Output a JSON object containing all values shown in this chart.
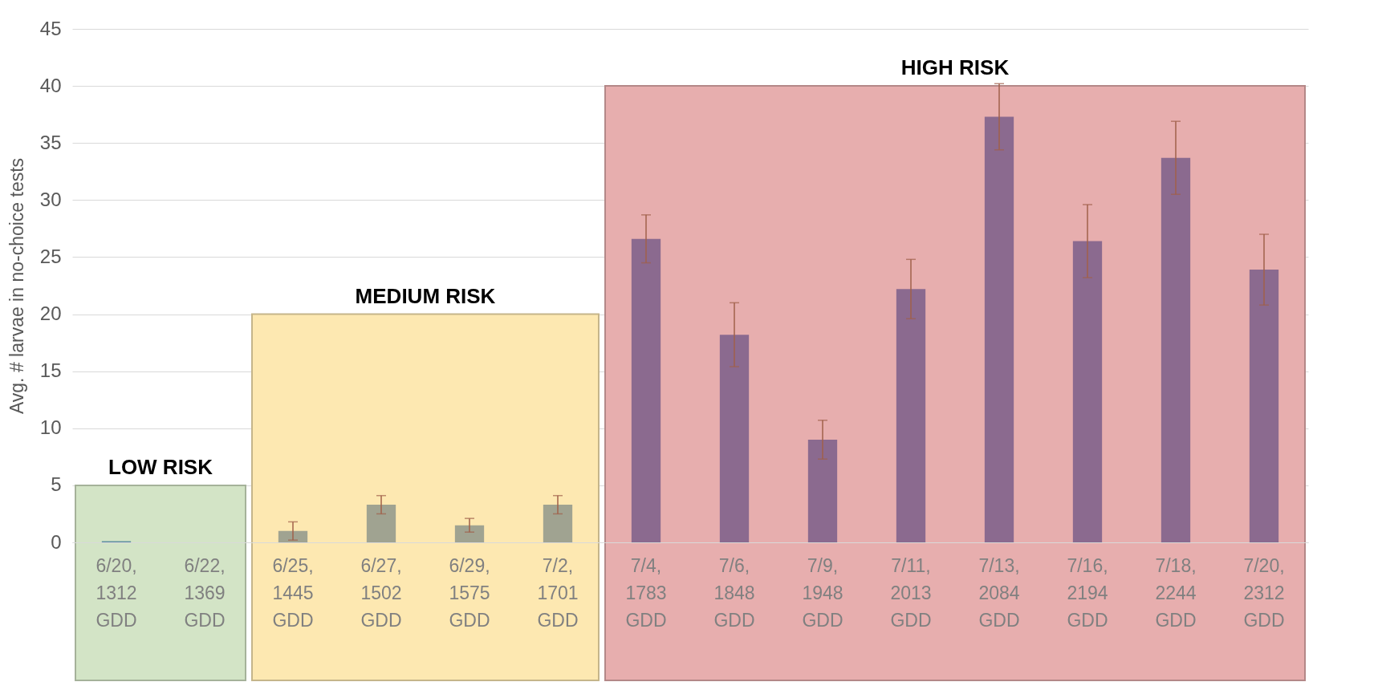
{
  "chart_data": {
    "type": "bar",
    "ylabel": "Avg. # larvae in no-choice tests",
    "categories": [
      "6/20, 1312 GDD",
      "6/22, 1369 GDD",
      "6/25, 1445 GDD",
      "6/27, 1502 GDD",
      "6/29, 1575 GDD",
      "7/2, 1701 GDD",
      "7/4, 1783 GDD",
      "7/6, 1848 GDD",
      "7/9, 1948 GDD",
      "7/11, 2013 GDD",
      "7/13, 2084 GDD",
      "7/16, 2194 GDD",
      "7/18, 2244 GDD",
      "7/20, 2312 GDD"
    ],
    "values": [
      0.1,
      0,
      1.0,
      3.3,
      1.5,
      3.3,
      26.6,
      18.2,
      9.0,
      22.2,
      37.3,
      26.4,
      33.7,
      23.9
    ],
    "errors": [
      null,
      null,
      0.8,
      0.8,
      0.6,
      0.8,
      2.1,
      2.8,
      1.7,
      2.6,
      2.9,
      3.2,
      3.2,
      3.1
    ],
    "colors": [
      "#5f8fa0",
      "#a0a391",
      "#a0a391",
      "#a0a391",
      "#a0a391",
      "#a0a391",
      "#8b6a8f",
      "#8b6a8f",
      "#8b6a8f",
      "#8b6a8f",
      "#8b6a8f",
      "#8b6a8f",
      "#8b6a8f",
      "#8b6a8f"
    ],
    "ylim": [
      0,
      45
    ],
    "yticks": [
      0,
      5,
      10,
      15,
      20,
      25,
      30,
      35,
      40,
      45
    ],
    "grid": "y",
    "bands": [
      {
        "axis": "x",
        "from": "6/20, 1312 GDD",
        "to": "6/22, 1369 GDD",
        "color": "#d3e4c6"
      },
      {
        "axis": "x",
        "from": "6/25, 1445 GDD",
        "to": "7/2, 1701 GDD",
        "color": "#fde8b1"
      },
      {
        "axis": "x",
        "from": "7/4, 1783 GDD",
        "to": "7/20, 2312 GDD",
        "color": "#e7aeae"
      }
    ],
    "annotations": [
      {
        "text": "LOW RISK",
        "y": 5
      },
      {
        "text": "MEDIUM RISK",
        "y": 20
      },
      {
        "text": "HIGH RISK",
        "y": 40
      }
    ]
  }
}
